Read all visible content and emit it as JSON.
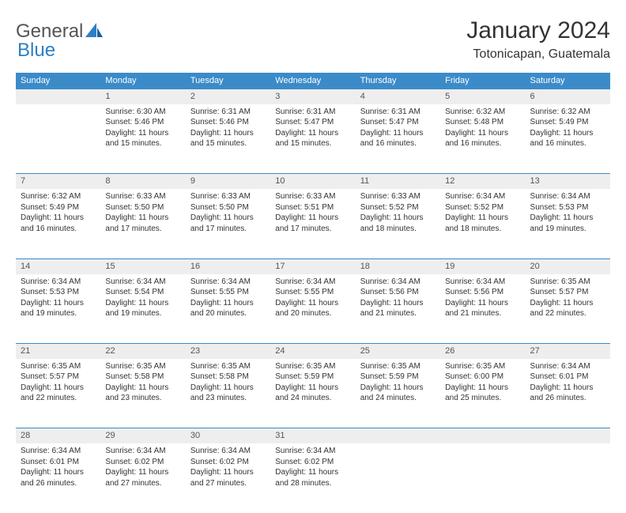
{
  "logo": {
    "part1": "General",
    "part2": "Blue"
  },
  "title": "January 2024",
  "location": "Totonicapan, Guatemala",
  "headers": [
    "Sunday",
    "Monday",
    "Tuesday",
    "Wednesday",
    "Thursday",
    "Friday",
    "Saturday"
  ],
  "colors": {
    "header_bg": "#3b8bc9",
    "header_fg": "#ffffff",
    "daynum_bg": "#eeeeee",
    "daynum_border": "#3b8bc9",
    "text": "#333333",
    "logo_gray": "#555555",
    "logo_blue": "#2d7fc4",
    "page_bg": "#ffffff"
  },
  "weeks": [
    {
      "nums": [
        "",
        "1",
        "2",
        "3",
        "4",
        "5",
        "6"
      ],
      "cells": [
        null,
        {
          "sunrise": "Sunrise: 6:30 AM",
          "sunset": "Sunset: 5:46 PM",
          "dl1": "Daylight: 11 hours",
          "dl2": "and 15 minutes."
        },
        {
          "sunrise": "Sunrise: 6:31 AM",
          "sunset": "Sunset: 5:46 PM",
          "dl1": "Daylight: 11 hours",
          "dl2": "and 15 minutes."
        },
        {
          "sunrise": "Sunrise: 6:31 AM",
          "sunset": "Sunset: 5:47 PM",
          "dl1": "Daylight: 11 hours",
          "dl2": "and 15 minutes."
        },
        {
          "sunrise": "Sunrise: 6:31 AM",
          "sunset": "Sunset: 5:47 PM",
          "dl1": "Daylight: 11 hours",
          "dl2": "and 16 minutes."
        },
        {
          "sunrise": "Sunrise: 6:32 AM",
          "sunset": "Sunset: 5:48 PM",
          "dl1": "Daylight: 11 hours",
          "dl2": "and 16 minutes."
        },
        {
          "sunrise": "Sunrise: 6:32 AM",
          "sunset": "Sunset: 5:49 PM",
          "dl1": "Daylight: 11 hours",
          "dl2": "and 16 minutes."
        }
      ]
    },
    {
      "nums": [
        "7",
        "8",
        "9",
        "10",
        "11",
        "12",
        "13"
      ],
      "cells": [
        {
          "sunrise": "Sunrise: 6:32 AM",
          "sunset": "Sunset: 5:49 PM",
          "dl1": "Daylight: 11 hours",
          "dl2": "and 16 minutes."
        },
        {
          "sunrise": "Sunrise: 6:33 AM",
          "sunset": "Sunset: 5:50 PM",
          "dl1": "Daylight: 11 hours",
          "dl2": "and 17 minutes."
        },
        {
          "sunrise": "Sunrise: 6:33 AM",
          "sunset": "Sunset: 5:50 PM",
          "dl1": "Daylight: 11 hours",
          "dl2": "and 17 minutes."
        },
        {
          "sunrise": "Sunrise: 6:33 AM",
          "sunset": "Sunset: 5:51 PM",
          "dl1": "Daylight: 11 hours",
          "dl2": "and 17 minutes."
        },
        {
          "sunrise": "Sunrise: 6:33 AM",
          "sunset": "Sunset: 5:52 PM",
          "dl1": "Daylight: 11 hours",
          "dl2": "and 18 minutes."
        },
        {
          "sunrise": "Sunrise: 6:34 AM",
          "sunset": "Sunset: 5:52 PM",
          "dl1": "Daylight: 11 hours",
          "dl2": "and 18 minutes."
        },
        {
          "sunrise": "Sunrise: 6:34 AM",
          "sunset": "Sunset: 5:53 PM",
          "dl1": "Daylight: 11 hours",
          "dl2": "and 19 minutes."
        }
      ]
    },
    {
      "nums": [
        "14",
        "15",
        "16",
        "17",
        "18",
        "19",
        "20"
      ],
      "cells": [
        {
          "sunrise": "Sunrise: 6:34 AM",
          "sunset": "Sunset: 5:53 PM",
          "dl1": "Daylight: 11 hours",
          "dl2": "and 19 minutes."
        },
        {
          "sunrise": "Sunrise: 6:34 AM",
          "sunset": "Sunset: 5:54 PM",
          "dl1": "Daylight: 11 hours",
          "dl2": "and 19 minutes."
        },
        {
          "sunrise": "Sunrise: 6:34 AM",
          "sunset": "Sunset: 5:55 PM",
          "dl1": "Daylight: 11 hours",
          "dl2": "and 20 minutes."
        },
        {
          "sunrise": "Sunrise: 6:34 AM",
          "sunset": "Sunset: 5:55 PM",
          "dl1": "Daylight: 11 hours",
          "dl2": "and 20 minutes."
        },
        {
          "sunrise": "Sunrise: 6:34 AM",
          "sunset": "Sunset: 5:56 PM",
          "dl1": "Daylight: 11 hours",
          "dl2": "and 21 minutes."
        },
        {
          "sunrise": "Sunrise: 6:34 AM",
          "sunset": "Sunset: 5:56 PM",
          "dl1": "Daylight: 11 hours",
          "dl2": "and 21 minutes."
        },
        {
          "sunrise": "Sunrise: 6:35 AM",
          "sunset": "Sunset: 5:57 PM",
          "dl1": "Daylight: 11 hours",
          "dl2": "and 22 minutes."
        }
      ]
    },
    {
      "nums": [
        "21",
        "22",
        "23",
        "24",
        "25",
        "26",
        "27"
      ],
      "cells": [
        {
          "sunrise": "Sunrise: 6:35 AM",
          "sunset": "Sunset: 5:57 PM",
          "dl1": "Daylight: 11 hours",
          "dl2": "and 22 minutes."
        },
        {
          "sunrise": "Sunrise: 6:35 AM",
          "sunset": "Sunset: 5:58 PM",
          "dl1": "Daylight: 11 hours",
          "dl2": "and 23 minutes."
        },
        {
          "sunrise": "Sunrise: 6:35 AM",
          "sunset": "Sunset: 5:58 PM",
          "dl1": "Daylight: 11 hours",
          "dl2": "and 23 minutes."
        },
        {
          "sunrise": "Sunrise: 6:35 AM",
          "sunset": "Sunset: 5:59 PM",
          "dl1": "Daylight: 11 hours",
          "dl2": "and 24 minutes."
        },
        {
          "sunrise": "Sunrise: 6:35 AM",
          "sunset": "Sunset: 5:59 PM",
          "dl1": "Daylight: 11 hours",
          "dl2": "and 24 minutes."
        },
        {
          "sunrise": "Sunrise: 6:35 AM",
          "sunset": "Sunset: 6:00 PM",
          "dl1": "Daylight: 11 hours",
          "dl2": "and 25 minutes."
        },
        {
          "sunrise": "Sunrise: 6:34 AM",
          "sunset": "Sunset: 6:01 PM",
          "dl1": "Daylight: 11 hours",
          "dl2": "and 26 minutes."
        }
      ]
    },
    {
      "nums": [
        "28",
        "29",
        "30",
        "31",
        "",
        "",
        ""
      ],
      "cells": [
        {
          "sunrise": "Sunrise: 6:34 AM",
          "sunset": "Sunset: 6:01 PM",
          "dl1": "Daylight: 11 hours",
          "dl2": "and 26 minutes."
        },
        {
          "sunrise": "Sunrise: 6:34 AM",
          "sunset": "Sunset: 6:02 PM",
          "dl1": "Daylight: 11 hours",
          "dl2": "and 27 minutes."
        },
        {
          "sunrise": "Sunrise: 6:34 AM",
          "sunset": "Sunset: 6:02 PM",
          "dl1": "Daylight: 11 hours",
          "dl2": "and 27 minutes."
        },
        {
          "sunrise": "Sunrise: 6:34 AM",
          "sunset": "Sunset: 6:02 PM",
          "dl1": "Daylight: 11 hours",
          "dl2": "and 28 minutes."
        },
        null,
        null,
        null
      ]
    }
  ]
}
